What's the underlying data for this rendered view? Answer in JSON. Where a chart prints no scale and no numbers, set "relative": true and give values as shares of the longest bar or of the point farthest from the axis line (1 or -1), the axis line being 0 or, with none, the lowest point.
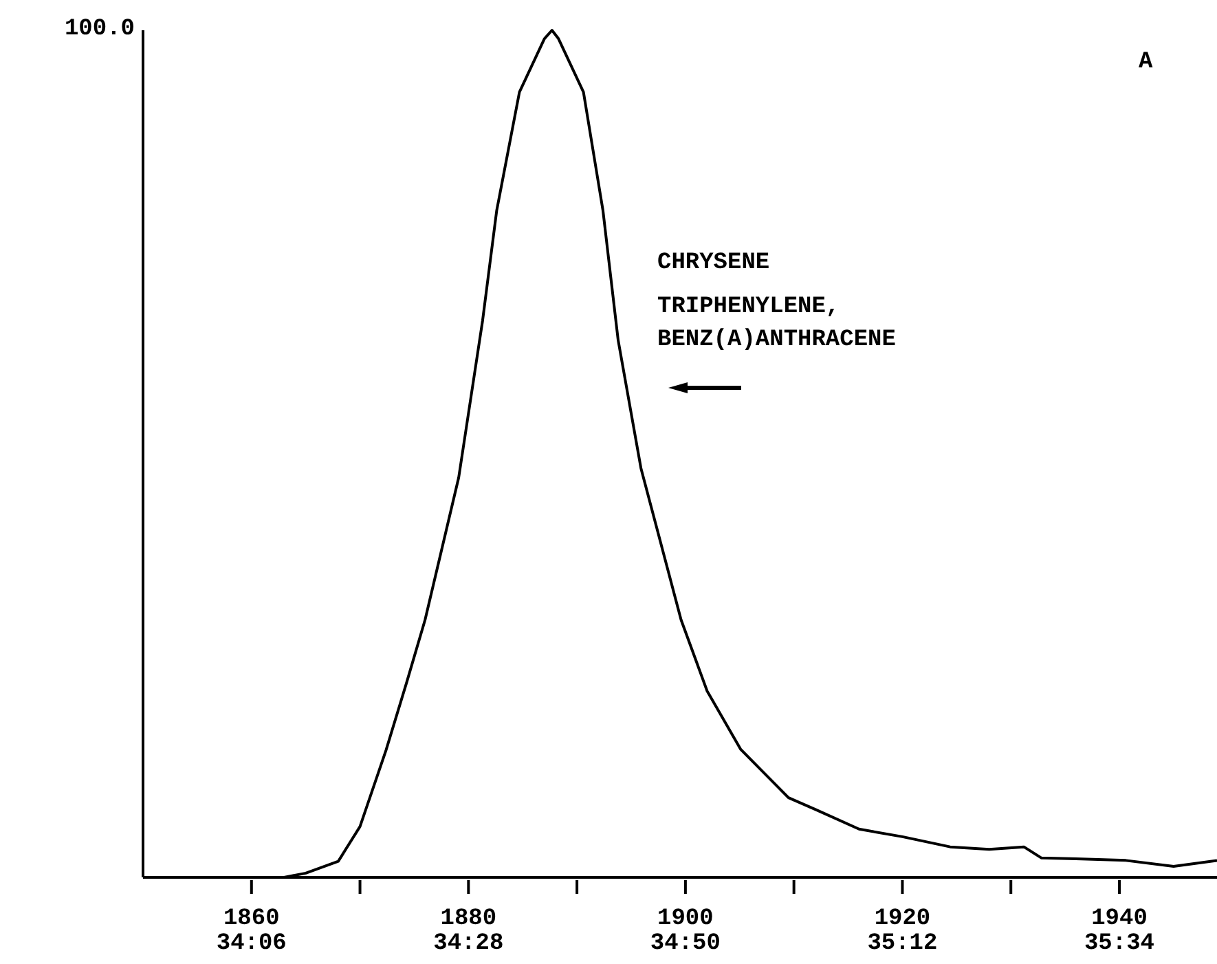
{
  "chart_data": {
    "type": "line",
    "relative": true,
    "color": "#000000",
    "marker": "none",
    "line_style": "solid",
    "x": [
      1858,
      1863,
      1865,
      1868,
      1870,
      1872.4,
      1874.3,
      1876,
      1879.1,
      1881.3,
      1882.6,
      1884.7,
      1887,
      1887.7,
      1888.3,
      1890.6,
      1892.4,
      1893.8,
      1895.9,
      1899.6,
      1902,
      1905.1,
      1909.5,
      1912,
      1916,
      1920,
      1924.4,
      1928,
      1931.2,
      1932.8,
      1936,
      1940.6,
      1945,
      1949
    ],
    "values": [
      0,
      0,
      0.005,
      0.019,
      0.06,
      0.15,
      0.23,
      0.304,
      0.472,
      0.657,
      0.787,
      0.927,
      0.99,
      1,
      0.99,
      0.927,
      0.787,
      0.634,
      0.483,
      0.304,
      0.22,
      0.151,
      0.094,
      0.08,
      0.057,
      0.048,
      0.036,
      0.033,
      0.036,
      0.023,
      0.022,
      0.02,
      0.013,
      0.02
    ],
    "xlim": [
      1850,
      1949
    ],
    "xticks": [
      1860,
      {
        "value": 1870,
        "label": null
      },
      1880,
      {
        "value": 1890,
        "label": null
      },
      1900,
      {
        "value": 1910,
        "label": null
      },
      1920,
      {
        "value": 1930,
        "label": null
      },
      1940
    ],
    "x2lim": [
      33.9167,
      35.7317
    ],
    "x2ticks": [
      {
        "value": 34.1,
        "label": "34:06"
      },
      {
        "value": 34.4667,
        "label": "34:28"
      },
      {
        "value": 34.8333,
        "label": "34:50"
      },
      {
        "value": 35.2,
        "label": "35:12"
      },
      {
        "value": 35.5667,
        "label": "35:34"
      }
    ],
    "annotations": [
      "100.0",
      "A",
      "CHRYSENE",
      "TRIPHENYLENE,",
      "BENZ(A)ANTHRACENE"
    ]
  }
}
